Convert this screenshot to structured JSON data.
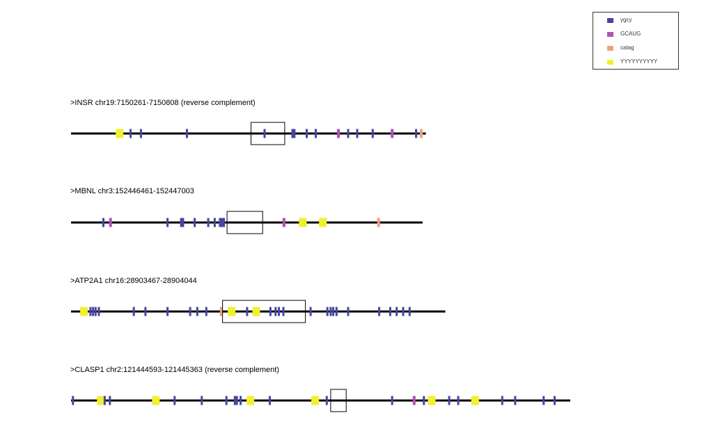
{
  "colors": {
    "ygcy": "#4646a0",
    "GCAUG": "#b050b8",
    "catag": "#f0a080",
    "YYYYYYYYYY": "#f0f030",
    "line": "#000000",
    "box": "#000000"
  },
  "legend": [
    {
      "key": "ygcy",
      "label": "ygcy"
    },
    {
      "key": "GCAUG",
      "label": "GCAUG"
    },
    {
      "key": "catag",
      "label": "catag"
    },
    {
      "key": "YYYYYYYYYY",
      "label": "YYYYYYYYYY"
    }
  ],
  "sequences": [
    {
      "title": ">INSR chr19:7150261-7150808 (reverse complement)",
      "length": 548,
      "box": [
        278,
        330
      ],
      "motifs": [
        {
          "t": "YYYYYYYYYY",
          "p": 75
        },
        {
          "t": "ygcy",
          "p": 92
        },
        {
          "t": "ygcy",
          "p": 108
        },
        {
          "t": "ygcy",
          "p": 179
        },
        {
          "t": "ygcy",
          "p": 299
        },
        {
          "t": "ygcy",
          "p": 342
        },
        {
          "t": "ygcy",
          "p": 345
        },
        {
          "t": "ygcy",
          "p": 364
        },
        {
          "t": "ygcy",
          "p": 378
        },
        {
          "t": "GCAUG",
          "p": 413
        },
        {
          "t": "ygcy",
          "p": 428
        },
        {
          "t": "ygcy",
          "p": 442
        },
        {
          "t": "ygcy",
          "p": 466
        },
        {
          "t": "GCAUG",
          "p": 496
        },
        {
          "t": "ygcy",
          "p": 533
        },
        {
          "t": "catag",
          "p": 541
        }
      ]
    },
    {
      "title": ">MBNL chr3:152446461-152447003",
      "length": 543,
      "box": [
        241,
        296
      ],
      "motifs": [
        {
          "t": "ygcy",
          "p": 50
        },
        {
          "t": "GCAUG",
          "p": 61
        },
        {
          "t": "ygcy",
          "p": 149
        },
        {
          "t": "ygcy",
          "p": 170
        },
        {
          "t": "ygcy",
          "p": 173
        },
        {
          "t": "ygcy",
          "p": 191
        },
        {
          "t": "ygcy",
          "p": 212
        },
        {
          "t": "ygcy",
          "p": 222
        },
        {
          "t": "ygcy",
          "p": 230
        },
        {
          "t": "ygcy",
          "p": 233
        },
        {
          "t": "ygcy",
          "p": 236
        },
        {
          "t": "GCAUG",
          "p": 329
        },
        {
          "t": "YYYYYYYYYY",
          "p": 358
        },
        {
          "t": "YYYYYYYYYY",
          "p": 389
        },
        {
          "t": "catag",
          "p": 475
        }
      ]
    },
    {
      "title": ">ATP2A1 chr16:28903467-28904044",
      "length": 578,
      "box": [
        234,
        362
      ],
      "motifs": [
        {
          "t": "YYYYYYYYYY",
          "p": 20
        },
        {
          "t": "ygcy",
          "p": 30
        },
        {
          "t": "ygcy",
          "p": 34
        },
        {
          "t": "ygcy",
          "p": 38
        },
        {
          "t": "ygcy",
          "p": 43
        },
        {
          "t": "ygcy",
          "p": 97
        },
        {
          "t": "ygcy",
          "p": 115
        },
        {
          "t": "ygcy",
          "p": 149
        },
        {
          "t": "ygcy",
          "p": 184
        },
        {
          "t": "ygcy",
          "p": 195
        },
        {
          "t": "ygcy",
          "p": 209
        },
        {
          "t": "catag",
          "p": 232
        },
        {
          "t": "YYYYYYYYYY",
          "p": 248
        },
        {
          "t": "ygcy",
          "p": 272
        },
        {
          "t": "YYYYYYYYYY",
          "p": 286
        },
        {
          "t": "ygcy",
          "p": 308
        },
        {
          "t": "ygcy",
          "p": 316
        },
        {
          "t": "ygcy",
          "p": 321
        },
        {
          "t": "ygcy",
          "p": 328
        },
        {
          "t": "ygcy",
          "p": 370
        },
        {
          "t": "ygcy",
          "p": 396
        },
        {
          "t": "ygcy",
          "p": 401
        },
        {
          "t": "ygcy",
          "p": 405
        },
        {
          "t": "ygcy",
          "p": 410
        },
        {
          "t": "ygcy",
          "p": 428
        },
        {
          "t": "ygcy",
          "p": 476
        },
        {
          "t": "ygcy",
          "p": 493
        },
        {
          "t": "ygcy",
          "p": 503
        },
        {
          "t": "ygcy",
          "p": 513
        },
        {
          "t": "ygcy",
          "p": 523
        }
      ]
    },
    {
      "title": ">CLASP1 chr2:121444593-121445363 (reverse complement)",
      "length": 771,
      "box": [
        401,
        425
      ],
      "motifs": [
        {
          "t": "ygcy",
          "p": 3
        },
        {
          "t": "YYYYYYYYYY",
          "p": 46
        },
        {
          "t": "ygcy",
          "p": 52
        },
        {
          "t": "ygcy",
          "p": 60
        },
        {
          "t": "YYYYYYYYYY",
          "p": 131
        },
        {
          "t": "ygcy",
          "p": 160
        },
        {
          "t": "ygcy",
          "p": 202
        },
        {
          "t": "ygcy",
          "p": 240
        },
        {
          "t": "ygcy",
          "p": 253
        },
        {
          "t": "ygcy",
          "p": 256
        },
        {
          "t": "ygcy",
          "p": 262
        },
        {
          "t": "YYYYYYYYYY",
          "p": 277
        },
        {
          "t": "ygcy",
          "p": 307
        },
        {
          "t": "YYYYYYYYYY",
          "p": 377
        },
        {
          "t": "ygcy",
          "p": 395
        },
        {
          "t": "ygcy",
          "p": 496
        },
        {
          "t": "GCAUG",
          "p": 530
        },
        {
          "t": "ygcy",
          "p": 545
        },
        {
          "t": "YYYYYYYYYY",
          "p": 557
        },
        {
          "t": "ygcy",
          "p": 584
        },
        {
          "t": "ygcy",
          "p": 598
        },
        {
          "t": "YYYYYYYYYY",
          "p": 624
        },
        {
          "t": "ygcy",
          "p": 666
        },
        {
          "t": "ygcy",
          "p": 686
        },
        {
          "t": "ygcy",
          "p": 730
        },
        {
          "t": "ygcy",
          "p": 747
        }
      ]
    }
  ]
}
